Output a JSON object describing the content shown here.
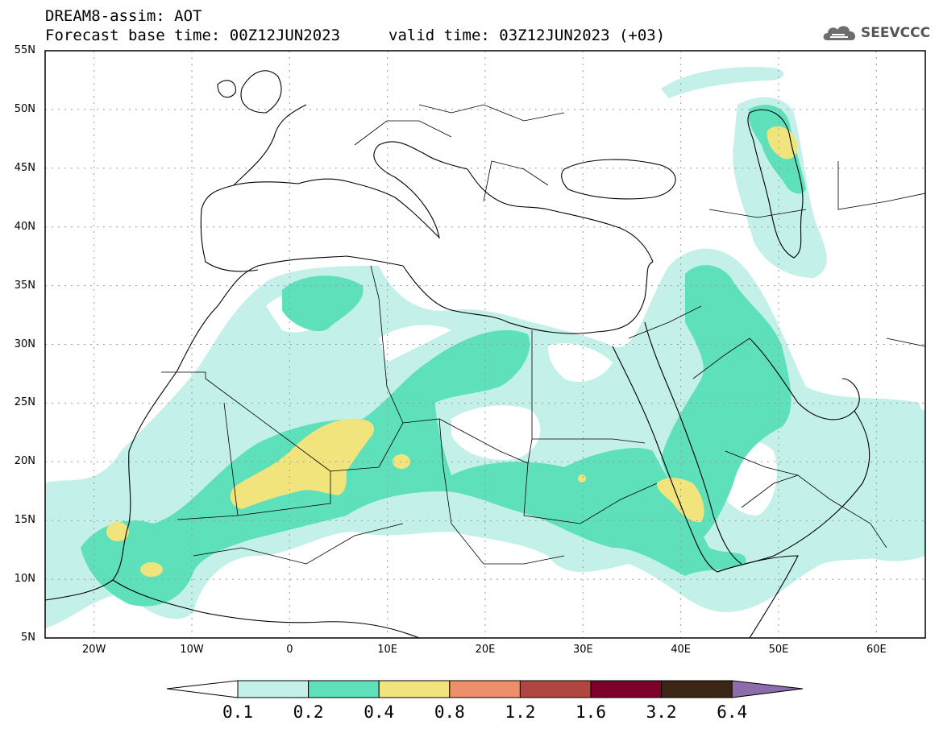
{
  "header": {
    "line1": "DREAM8-assim: AOT",
    "line2": "Forecast base time: 00Z12JUN2023",
    "valid": "valid time: 03Z12JUN2023 (+03)"
  },
  "logo": {
    "text": "SEEVCCC",
    "icon": "cloud-icon"
  },
  "map": {
    "lat_range": [
      5,
      55
    ],
    "lon_range": [
      -25,
      65
    ],
    "lat_ticks": [
      "55N",
      "50N",
      "45N",
      "40N",
      "35N",
      "30N",
      "25N",
      "20N",
      "15N",
      "10N",
      "5N"
    ],
    "lon_ticks": [
      "20W",
      "10W",
      "0",
      "10E",
      "20E",
      "30E",
      "40E",
      "50E",
      "60E"
    ],
    "grid": "dotted"
  },
  "legend": {
    "levels": [
      "0.1",
      "0.2",
      "0.4",
      "0.8",
      "1.2",
      "1.6",
      "3.2",
      "6.4"
    ],
    "colors": [
      "#c3f0e8",
      "#5ee0bb",
      "#f2e47c",
      "#ec8f6a",
      "#b0463f",
      "#7d0028",
      "#3b2514",
      "#8d6cac"
    ]
  }
}
